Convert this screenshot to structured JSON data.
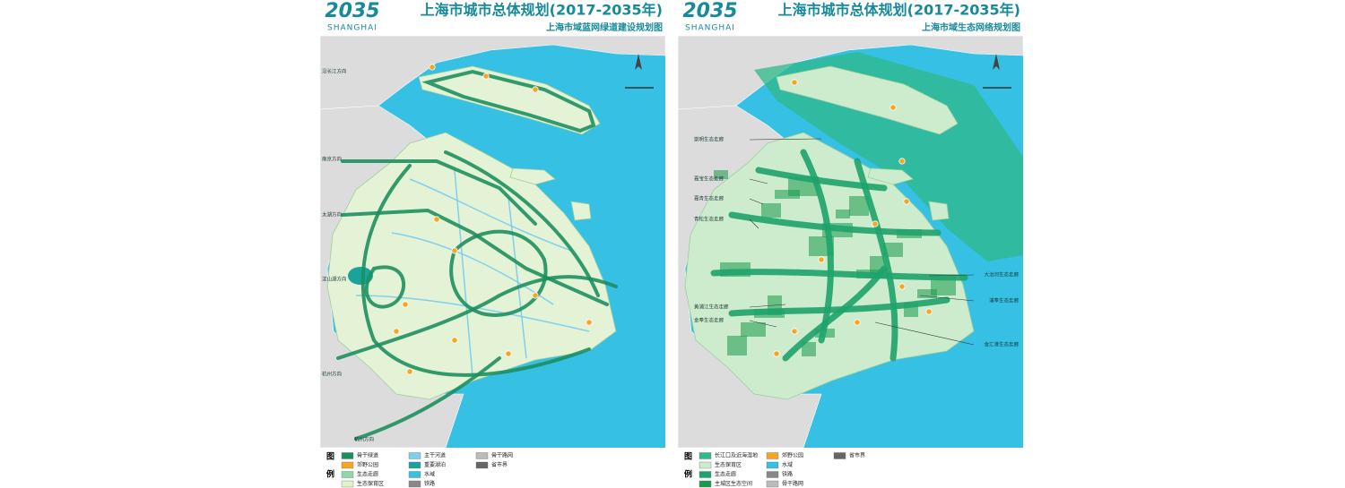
{
  "panels": [
    {
      "logo": {
        "number": "2035",
        "city": "SHANGHAI"
      },
      "title": "上海市城市总体规划(2017-2035年)",
      "subtitle": "上海市域蓝网绿道建设规划图",
      "map_labels": [
        "沿长江方向",
        "南京方向",
        "太湖方向",
        "淀山湖方向",
        "杭州方向",
        "杭州方向"
      ],
      "legend": {
        "heading": [
          "图",
          "例"
        ],
        "items": [
          {
            "label": "骨干绿道",
            "color": "#1d8f5e"
          },
          {
            "label": "郊野公园",
            "color": "#f5a623"
          },
          {
            "label": "生态走廊",
            "color": "#8fd9a8"
          },
          {
            "label": "生态保育区",
            "color": "#e3f1c9"
          },
          {
            "label": "主干河道",
            "color": "#7fd0ef"
          },
          {
            "label": "重要湖泊",
            "color": "#1aa39a"
          },
          {
            "label": "水域",
            "color": "#35c0e4"
          },
          {
            "label": "铁路",
            "color": "#888888"
          },
          {
            "label": "骨干路网",
            "color": "#bbbbbb"
          },
          {
            "label": "省市界",
            "color": "#666666"
          }
        ]
      }
    },
    {
      "logo": {
        "number": "2035",
        "city": "SHANGHAI"
      },
      "title": "上海市城市总体规划(2017-2035年)",
      "subtitle": "上海市域生态网络规划图",
      "map_labels": [
        "崇明生态走廊",
        "嘉宝生态走廊",
        "嘉青生态走廊",
        "青松生态走廊",
        "黄浦江生态走廊",
        "金奉生态走廊",
        "大治河生态走廊",
        "浦奉生态走廊",
        "金汇港生态走廊"
      ],
      "legend": {
        "heading": [
          "图",
          "例"
        ],
        "items": [
          {
            "label": "长江口及近海湿地",
            "color": "#2fb98a"
          },
          {
            "label": "生态保育区",
            "color": "#cdeccd"
          },
          {
            "label": "生态走廊",
            "color": "#1ea36c"
          },
          {
            "label": "主城区生态空间",
            "color": "#179a4a"
          },
          {
            "label": "郊野公园",
            "color": "#f5a623"
          },
          {
            "label": "水域",
            "color": "#35c0e4"
          },
          {
            "label": "铁路",
            "color": "#888888"
          },
          {
            "label": "骨干路网",
            "color": "#bbbbbb"
          },
          {
            "label": "省市界",
            "color": "#666666"
          }
        ]
      }
    }
  ]
}
